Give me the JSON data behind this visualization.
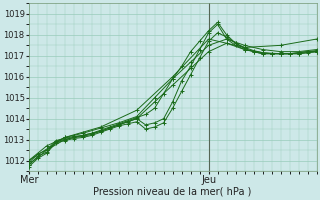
{
  "xlabel": "Pression niveau de la mer( hPa )",
  "bg_color": "#cde8e8",
  "grid_color": "#99ccbb",
  "line_color": "#1a6b1a",
  "vline_color": "#556655",
  "ylim": [
    1011.5,
    1019.5
  ],
  "xlim": [
    0,
    96
  ],
  "yticks": [
    1012,
    1013,
    1014,
    1015,
    1016,
    1017,
    1018,
    1019
  ],
  "xtick_positions": [
    0,
    60
  ],
  "xtick_labels": [
    "Mer",
    "Jeu"
  ],
  "vline_x": 60,
  "series": [
    [
      0,
      1011.8,
      3,
      1012.2,
      6,
      1012.4,
      9,
      1012.9,
      12,
      1013.0,
      15,
      1013.1,
      18,
      1013.15,
      21,
      1013.25,
      24,
      1013.4,
      27,
      1013.55,
      30,
      1013.7,
      33,
      1013.85,
      36,
      1014.0,
      39,
      1013.7,
      42,
      1013.8,
      45,
      1014.0,
      48,
      1014.8,
      51,
      1015.8,
      54,
      1016.5,
      57,
      1017.3,
      60,
      1018.1,
      63,
      1018.5,
      66,
      1017.8,
      69,
      1017.5,
      72,
      1017.3,
      75,
      1017.2,
      78,
      1017.1,
      81,
      1017.1,
      84,
      1017.1,
      87,
      1017.1,
      90,
      1017.15,
      93,
      1017.2,
      96,
      1017.2
    ],
    [
      0,
      1011.9,
      3,
      1012.3,
      6,
      1012.5,
      9,
      1012.95,
      12,
      1013.05,
      15,
      1013.15,
      18,
      1013.2,
      21,
      1013.3,
      24,
      1013.45,
      27,
      1013.6,
      30,
      1013.75,
      33,
      1013.9,
      36,
      1014.05,
      39,
      1014.2,
      42,
      1014.5,
      45,
      1015.2,
      48,
      1015.9,
      51,
      1016.5,
      54,
      1017.2,
      57,
      1017.7,
      60,
      1018.2,
      63,
      1018.6,
      66,
      1018.0,
      69,
      1017.6,
      72,
      1017.35,
      75,
      1017.2,
      78,
      1017.1,
      81,
      1017.1,
      84,
      1017.1,
      87,
      1017.1,
      90,
      1017.15,
      93,
      1017.2,
      96,
      1017.25
    ],
    [
      0,
      1011.7,
      3,
      1012.1,
      6,
      1012.35,
      9,
      1012.85,
      12,
      1012.95,
      15,
      1013.05,
      18,
      1013.1,
      21,
      1013.2,
      24,
      1013.35,
      27,
      1013.5,
      30,
      1013.65,
      33,
      1013.75,
      36,
      1013.85,
      39,
      1013.5,
      42,
      1013.6,
      45,
      1013.8,
      48,
      1014.5,
      51,
      1015.3,
      54,
      1016.1,
      57,
      1016.9,
      60,
      1017.7,
      63,
      1018.1,
      66,
      1017.9,
      69,
      1017.6,
      72,
      1017.4,
      75,
      1017.25,
      78,
      1017.15,
      81,
      1017.1,
      84,
      1017.1,
      87,
      1017.1,
      90,
      1017.1,
      93,
      1017.15,
      96,
      1017.2
    ],
    [
      0,
      1011.8,
      6,
      1012.5,
      12,
      1013.0,
      18,
      1013.2,
      24,
      1013.4,
      30,
      1013.7,
      36,
      1014.0,
      42,
      1014.8,
      48,
      1015.6,
      54,
      1016.4,
      60,
      1017.2,
      66,
      1017.6,
      72,
      1017.3,
      78,
      1017.15,
      84,
      1017.1,
      90,
      1017.1,
      96,
      1017.2
    ],
    [
      0,
      1012.0,
      6,
      1012.7,
      12,
      1013.1,
      18,
      1013.3,
      24,
      1013.55,
      30,
      1013.8,
      36,
      1014.1,
      42,
      1015.0,
      48,
      1015.9,
      54,
      1016.7,
      60,
      1017.5,
      66,
      1017.8,
      72,
      1017.5,
      78,
      1017.3,
      84,
      1017.2,
      90,
      1017.2,
      96,
      1017.3
    ],
    [
      0,
      1012.0,
      12,
      1013.1,
      24,
      1013.6,
      36,
      1014.4,
      48,
      1016.0,
      60,
      1017.8,
      72,
      1017.4,
      84,
      1017.5,
      96,
      1017.8
    ]
  ]
}
